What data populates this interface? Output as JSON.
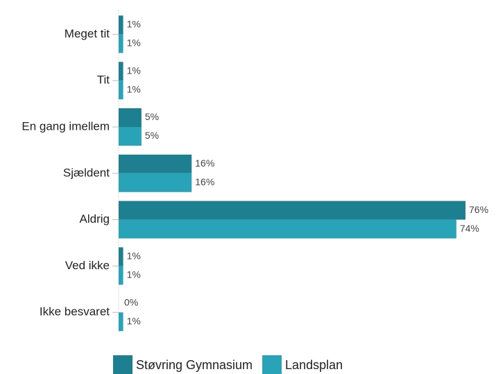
{
  "chart_data": {
    "type": "bar",
    "orientation": "horizontal",
    "categories": [
      "Meget tit",
      "Tit",
      "En gang imellem",
      "Sjældent",
      "Aldrig",
      "Ved ikke",
      "Ikke besvaret"
    ],
    "series": [
      {
        "name": "Støvring Gymnasium",
        "color": "#1e7f90",
        "values": [
          1,
          1,
          5,
          16,
          76,
          1,
          0
        ],
        "value_labels": [
          "1%",
          "1%",
          "5%",
          "16%",
          "76%",
          "1%",
          "0%"
        ]
      },
      {
        "name": "Landsplan",
        "color": "#29a3b7",
        "values": [
          1,
          1,
          5,
          16,
          74,
          1,
          1
        ],
        "value_labels": [
          "1%",
          "1%",
          "5%",
          "16%",
          "74%",
          "1%",
          "1%"
        ]
      }
    ],
    "legend": "bottom"
  }
}
